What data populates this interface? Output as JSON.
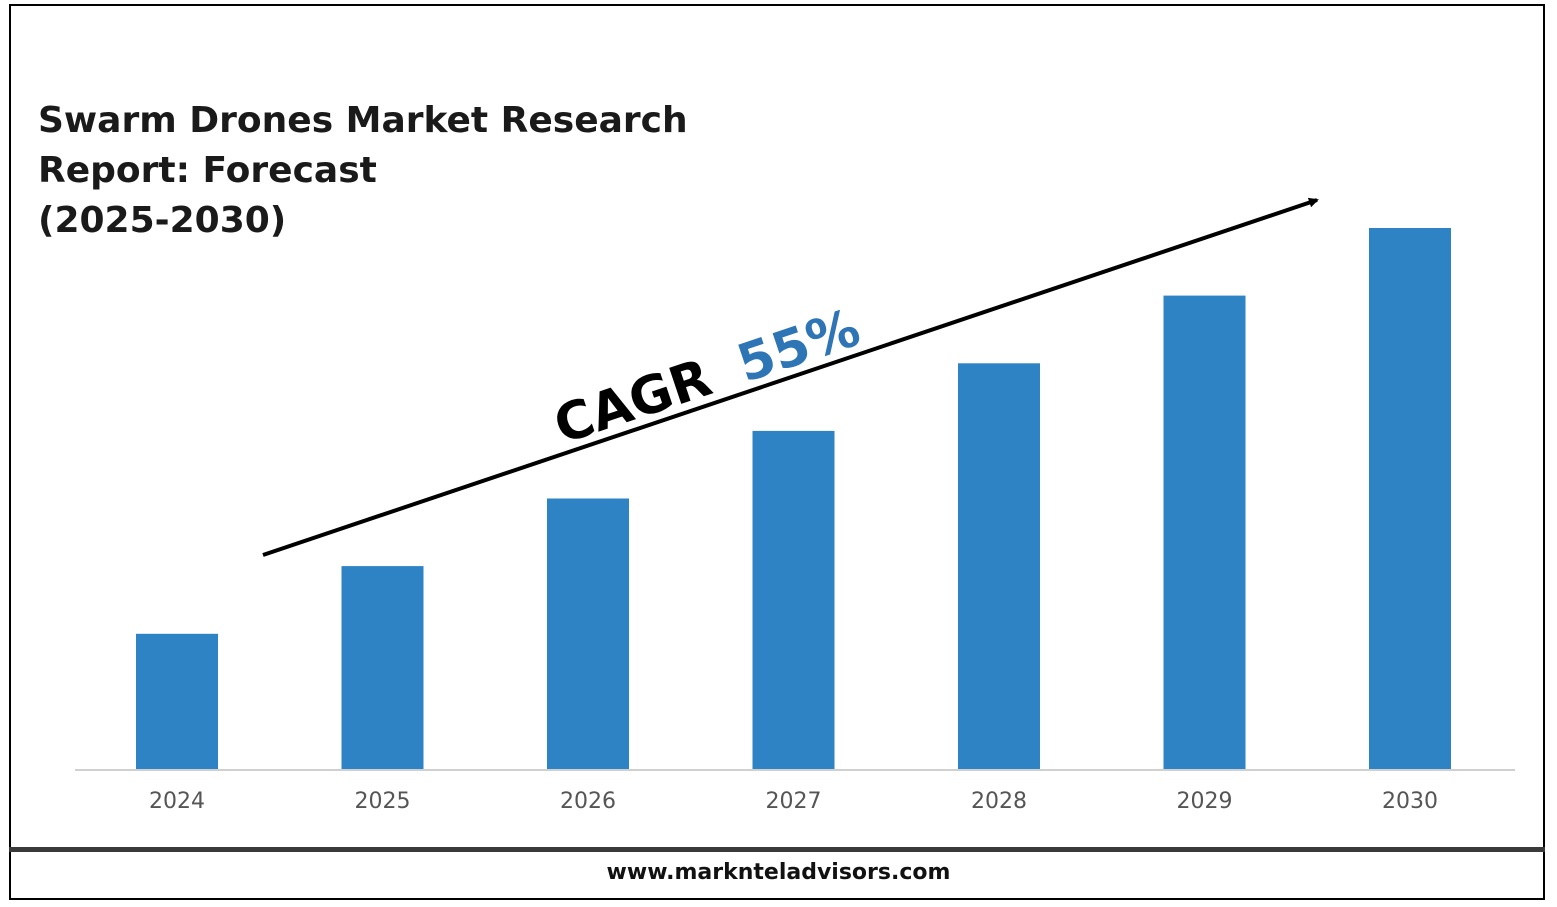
{
  "title": {
    "line1": "Swarm Drones Market Research",
    "line2": "Report: Forecast",
    "line3": "(2025-2030)"
  },
  "cagr": {
    "label": "CAGR",
    "value": "55%",
    "value_color": "#2E75B6"
  },
  "footer": {
    "url": "www.marknteladvisors.com"
  },
  "colors": {
    "bar": "#2E83C4",
    "axis": "#D0D0D0",
    "tick_label": "#555555",
    "arrow": "#000000"
  },
  "chart_data": {
    "type": "bar",
    "categories": [
      "2024",
      "2025",
      "2026",
      "2027",
      "2028",
      "2029",
      "2030"
    ],
    "values": [
      1.0,
      1.5,
      2.0,
      2.5,
      3.0,
      3.5,
      4.0
    ],
    "title": "Swarm Drones Market Research Report: Forecast (2025-2030)",
    "xlabel": "",
    "ylabel": "",
    "ylim": [
      0,
      4.0
    ],
    "grid": false,
    "legend": "none",
    "annotations": [
      "CAGR 55%"
    ]
  }
}
